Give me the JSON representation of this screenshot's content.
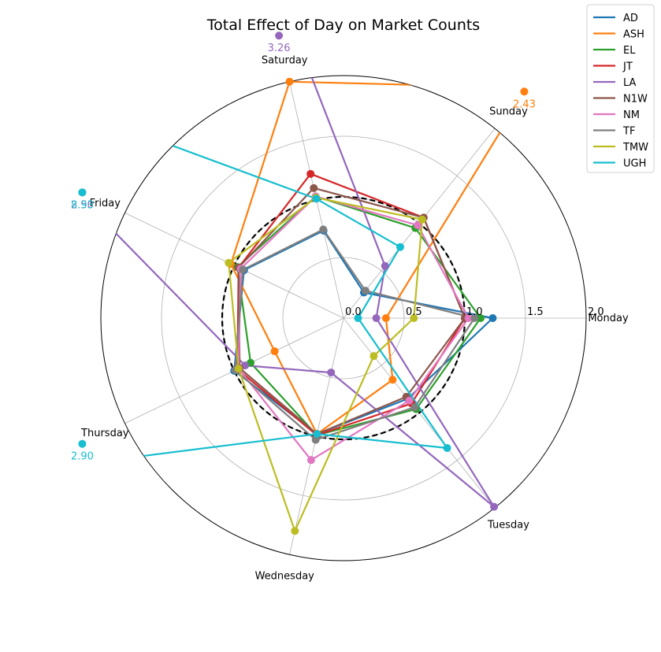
{
  "chart_data": {
    "type": "radar",
    "title": "Total Effect of Day on Market Counts",
    "categories": [
      "Monday",
      "Tuesday",
      "Wednesday",
      "Thursday",
      "Friday",
      "Saturday",
      "Sunday"
    ],
    "rlim": [
      0,
      2.0
    ],
    "r_ticks": [
      "0.0",
      "0.5",
      "1.0",
      "1.5",
      "2.0"
    ],
    "reference_circle": 1.0,
    "grid": true,
    "legend_position": "top-right",
    "series": [
      {
        "name": "AD",
        "color": "#1f77b4",
        "values": [
          1.23,
          0.85,
          0.98,
          1.0,
          0.91,
          0.74,
          0.27
        ]
      },
      {
        "name": "ASH",
        "color": "#ff7f0e",
        "values": [
          0.35,
          0.65,
          0.98,
          0.63,
          1.03,
          2.0,
          2.43
        ]
      },
      {
        "name": "EL",
        "color": "#2ca02c",
        "values": [
          1.13,
          0.96,
          0.99,
          0.85,
          0.97,
          1.03,
          0.95
        ]
      },
      {
        "name": "JT",
        "color": "#d62728",
        "values": [
          1.0,
          0.9,
          0.99,
          0.97,
          0.96,
          1.22,
          1.06
        ]
      },
      {
        "name": "LA",
        "color": "#9467bd",
        "values": [
          0.27,
          1.99,
          0.46,
          0.9,
          2.5,
          3.26,
          0.55
        ]
      },
      {
        "name": "N1W",
        "color": "#8c564b",
        "values": [
          1.0,
          0.83,
          0.98,
          0.95,
          0.96,
          1.1,
          1.06
        ]
      },
      {
        "name": "NM",
        "color": "#e377c2",
        "values": [
          1.03,
          0.87,
          1.2,
          0.96,
          0.94,
          1.03,
          0.98
        ]
      },
      {
        "name": "TF",
        "color": "#7f7f7f",
        "values": [
          1.08,
          0.94,
          1.03,
          0.99,
          0.92,
          0.75,
          0.29
        ]
      },
      {
        "name": "TMW",
        "color": "#bcbd22",
        "values": [
          0.58,
          0.4,
          1.8,
          0.96,
          1.05,
          1.02,
          1.04
        ]
      },
      {
        "name": "UGH",
        "color": "#17becf",
        "values": [
          0.12,
          1.37,
          0.98,
          2.9,
          8.93,
          1.01,
          0.75
        ]
      }
    ]
  }
}
